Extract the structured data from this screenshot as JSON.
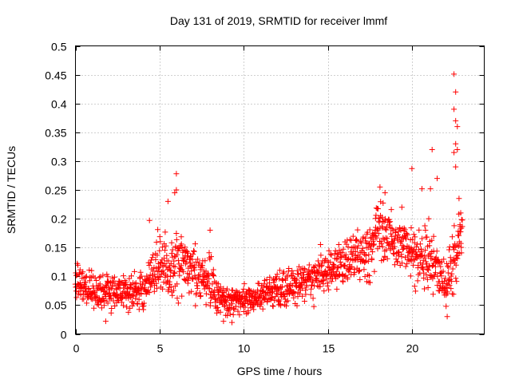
{
  "chart_data": {
    "type": "scatter",
    "title": "Day 131 of 2019, SRMTID for receiver lmmf",
    "xlabel": "GPS time / hours",
    "ylabel": "SRMTID / TECUs",
    "xlim": [
      0,
      24.3
    ],
    "ylim": [
      0,
      0.5
    ],
    "x_ticks": [
      0,
      5,
      10,
      15,
      20
    ],
    "x_tick_labels": [
      "0",
      "5",
      "10",
      "15",
      "20"
    ],
    "y_ticks": [
      0,
      0.05,
      0.1,
      0.15,
      0.2,
      0.25,
      0.3,
      0.35,
      0.4,
      0.45,
      0.5
    ],
    "y_tick_labels": [
      "0",
      "0.05",
      "0.1",
      "0.15",
      "0.2",
      "0.25",
      "0.3",
      "0.35",
      "0.4",
      "0.45",
      "0.5"
    ],
    "grid": true,
    "marker": "+",
    "color": "#ff0000",
    "series": [
      {
        "name": "SRMTID",
        "profile_x": [
          0,
          0.5,
          1,
          2,
          3,
          4,
          4.5,
          5,
          5.5,
          6,
          7,
          8,
          8.5,
          9,
          10,
          11,
          12,
          13,
          14,
          15,
          16,
          17,
          17.5,
          18,
          18.5,
          19,
          20,
          21,
          21.5,
          22,
          22.5,
          23
        ],
        "profile_median": [
          0.09,
          0.085,
          0.07,
          0.075,
          0.075,
          0.07,
          0.1,
          0.12,
          0.11,
          0.13,
          0.11,
          0.09,
          0.06,
          0.055,
          0.06,
          0.065,
          0.075,
          0.085,
          0.1,
          0.11,
          0.12,
          0.14,
          0.13,
          0.19,
          0.17,
          0.17,
          0.14,
          0.13,
          0.12,
          0.08,
          0.14,
          0.16
        ],
        "profile_spread": [
          0.03,
          0.025,
          0.025,
          0.025,
          0.025,
          0.025,
          0.035,
          0.04,
          0.04,
          0.05,
          0.04,
          0.035,
          0.02,
          0.02,
          0.02,
          0.02,
          0.025,
          0.025,
          0.03,
          0.03,
          0.03,
          0.035,
          0.04,
          0.04,
          0.04,
          0.04,
          0.04,
          0.04,
          0.04,
          0.025,
          0.05,
          0.04
        ],
        "highlights": [
          [
            6.0,
            0.278
          ],
          [
            6.0,
            0.25
          ],
          [
            5.9,
            0.245
          ],
          [
            5.5,
            0.23
          ],
          [
            4.4,
            0.197
          ],
          [
            8.0,
            0.18
          ],
          [
            18.1,
            0.255
          ],
          [
            18.4,
            0.245
          ],
          [
            19.4,
            0.22
          ],
          [
            20.0,
            0.287
          ],
          [
            20.6,
            0.252
          ],
          [
            21.1,
            0.252
          ],
          [
            21.5,
            0.27
          ],
          [
            21.2,
            0.32
          ],
          [
            21.0,
            0.2
          ],
          [
            22.5,
            0.451
          ],
          [
            22.6,
            0.42
          ],
          [
            22.5,
            0.39
          ],
          [
            22.6,
            0.37
          ],
          [
            22.7,
            0.36
          ],
          [
            22.6,
            0.33
          ],
          [
            22.7,
            0.32
          ],
          [
            22.5,
            0.315
          ],
          [
            22.6,
            0.29
          ],
          [
            22.8,
            0.235
          ],
          [
            22.9,
            0.21
          ],
          [
            22.1,
            0.03
          ],
          [
            8.8,
            0.022
          ],
          [
            9.3,
            0.02
          ],
          [
            1.8,
            0.022
          ]
        ]
      }
    ]
  }
}
